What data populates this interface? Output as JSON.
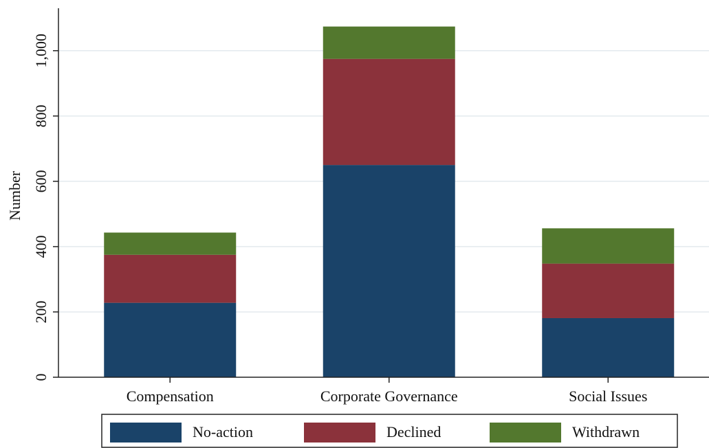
{
  "chart_data": {
    "type": "stacked_bar",
    "y_label": "Number",
    "categories": [
      "Compensation",
      "Corporate Governance",
      "Social Issues"
    ],
    "series": [
      {
        "name": "No-action",
        "color": "#1a4369",
        "values": [
          228,
          650,
          181
        ]
      },
      {
        "name": "Declined",
        "color": "#8b323b",
        "values": [
          147,
          325,
          167
        ]
      },
      {
        "name": "Withdrawn",
        "color": "#53782e",
        "values": [
          68,
          99,
          108
        ]
      }
    ],
    "ylim": [
      0,
      1130
    ],
    "yticks": [
      0,
      200,
      400,
      600,
      800,
      {
        "value": 1000,
        "label": "1,000"
      }
    ],
    "grid": true,
    "legend": "bottom"
  }
}
